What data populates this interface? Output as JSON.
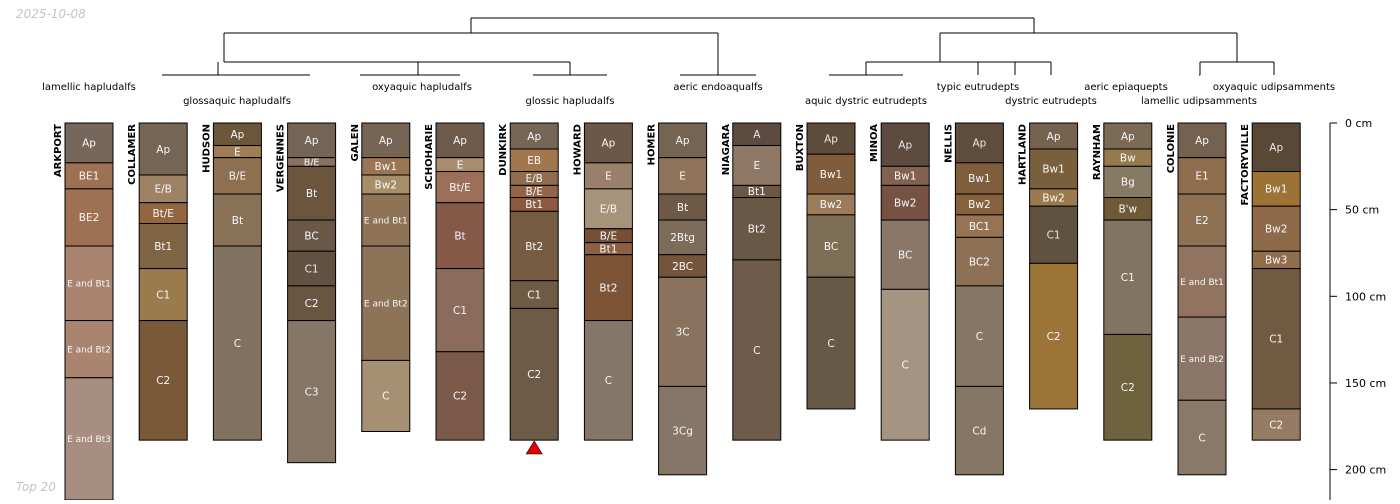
{
  "header": {
    "date": "2025-10-08"
  },
  "footer": {
    "label": "Top 20"
  },
  "chart_data": {
    "type": "soil-profile-sketch",
    "depth_unit": "cm",
    "depth_axis": {
      "ticks": [
        0,
        50,
        100,
        150,
        200
      ],
      "labels": [
        "0 cm",
        "50 cm",
        "100 cm",
        "150 cm",
        "200 cm"
      ]
    },
    "subgroup_labels": [
      {
        "text": "lamellic hapludalfs",
        "row": 1
      },
      {
        "text": "glossaquic hapludalfs",
        "row": 2
      },
      {
        "text": "oxyaquic hapludalfs",
        "row": 1
      },
      {
        "text": "glossic hapludalfs",
        "row": 2
      },
      {
        "text": "aeric endoaqualfs",
        "row": 1
      },
      {
        "text": "aquic dystric eutrudepts",
        "row": 2
      },
      {
        "text": "typic eutrudepts",
        "row": 1
      },
      {
        "text": "dystric eutrudepts",
        "row": 2
      },
      {
        "text": "aeric epiaquepts",
        "row": 1
      },
      {
        "text": "lamellic udipsamments",
        "row": 2
      },
      {
        "text": "oxyaquic udipsamments",
        "row": 1
      }
    ],
    "profiles": [
      {
        "name": "ARKPORT",
        "horizons": [
          {
            "name": "Ap",
            "top": 0,
            "bottom": 23,
            "color": "#77675a"
          },
          {
            "name": "BE1",
            "top": 23,
            "bottom": 38,
            "color": "#9e7054"
          },
          {
            "name": "BE2",
            "top": 38,
            "bottom": 71,
            "color": "#9e7054"
          },
          {
            "name": "E and Bt1",
            "top": 71,
            "bottom": 114,
            "color": "#a9846f"
          },
          {
            "name": "E and Bt2",
            "top": 114,
            "bottom": 147,
            "color": "#a9846f"
          },
          {
            "name": "E and Bt3",
            "top": 147,
            "bottom": 220,
            "color": "#a78e80"
          }
        ]
      },
      {
        "name": "COLLAMER",
        "horizons": [
          {
            "name": "Ap",
            "top": 0,
            "bottom": 30,
            "color": "#766656"
          },
          {
            "name": "E/B",
            "top": 30,
            "bottom": 46,
            "color": "#9d8264"
          },
          {
            "name": "Bt/E",
            "top": 46,
            "bottom": 58,
            "color": "#93663f"
          },
          {
            "name": "Bt1",
            "top": 58,
            "bottom": 84,
            "color": "#7f6446"
          },
          {
            "name": "C1",
            "top": 84,
            "bottom": 114,
            "color": "#9a7b4b"
          },
          {
            "name": "C2",
            "top": 114,
            "bottom": 183,
            "color": "#7a5938"
          }
        ]
      },
      {
        "name": "HUDSON",
        "horizons": [
          {
            "name": "Ap",
            "top": 0,
            "bottom": 13,
            "color": "#6c563b"
          },
          {
            "name": "E",
            "top": 13,
            "bottom": 20,
            "color": "#a07e55"
          },
          {
            "name": "B/E",
            "top": 20,
            "bottom": 41,
            "color": "#8c7050"
          },
          {
            "name": "Bt",
            "top": 41,
            "bottom": 71,
            "color": "#897258"
          },
          {
            "name": "C",
            "top": 71,
            "bottom": 183,
            "color": "#80725e"
          }
        ]
      },
      {
        "name": "VERGENNES",
        "horizons": [
          {
            "name": "Ap",
            "top": 0,
            "bottom": 20,
            "color": "#736455"
          },
          {
            "name": "B/E",
            "top": 20,
            "bottom": 25,
            "color": "#8a7160"
          },
          {
            "name": "Bt",
            "top": 25,
            "bottom": 56,
            "color": "#6b553f"
          },
          {
            "name": "BC",
            "top": 56,
            "bottom": 74,
            "color": "#6a5746"
          },
          {
            "name": "C1",
            "top": 74,
            "bottom": 94,
            "color": "#625040"
          },
          {
            "name": "C2",
            "top": 94,
            "bottom": 114,
            "color": "#6a5442"
          },
          {
            "name": "C3",
            "top": 114,
            "bottom": 196,
            "color": "#857665"
          }
        ]
      },
      {
        "name": "GALEN",
        "horizons": [
          {
            "name": "Ap",
            "top": 0,
            "bottom": 20,
            "color": "#766454"
          },
          {
            "name": "Bw1",
            "top": 20,
            "bottom": 30,
            "color": "#9b7554"
          },
          {
            "name": "Bw2",
            "top": 30,
            "bottom": 41,
            "color": "#a68f68"
          },
          {
            "name": "E and Bt1",
            "top": 41,
            "bottom": 71,
            "color": "#8e7357"
          },
          {
            "name": "E and Bt2",
            "top": 71,
            "bottom": 137,
            "color": "#8d7458"
          },
          {
            "name": "C",
            "top": 137,
            "bottom": 178,
            "color": "#a69074"
          }
        ]
      },
      {
        "name": "SCHOHARIE",
        "horizons": [
          {
            "name": "Ap",
            "top": 0,
            "bottom": 20,
            "color": "#6e5b4c"
          },
          {
            "name": "E",
            "top": 20,
            "bottom": 28,
            "color": "#a88c6c"
          },
          {
            "name": "Bt/E",
            "top": 28,
            "bottom": 46,
            "color": "#9b6f58"
          },
          {
            "name": "Bt",
            "top": 46,
            "bottom": 84,
            "color": "#845948"
          },
          {
            "name": "C1",
            "top": 84,
            "bottom": 132,
            "color": "#8b6b5c"
          },
          {
            "name": "C2",
            "top": 132,
            "bottom": 183,
            "color": "#7b5a4a"
          }
        ]
      },
      {
        "name": "DUNKIRK",
        "horizons": [
          {
            "name": "Ap",
            "top": 0,
            "bottom": 15,
            "color": "#766655"
          },
          {
            "name": "EB",
            "top": 15,
            "bottom": 28,
            "color": "#a2774e"
          },
          {
            "name": "E/B",
            "top": 28,
            "bottom": 36,
            "color": "#8e6c4e"
          },
          {
            "name": "B/E",
            "top": 36,
            "bottom": 43,
            "color": "#956447"
          },
          {
            "name": "Bt1",
            "top": 43,
            "bottom": 51,
            "color": "#8a5940"
          },
          {
            "name": "Bt2",
            "top": 51,
            "bottom": 91,
            "color": "#755c43"
          },
          {
            "name": "C1",
            "top": 91,
            "bottom": 107,
            "color": "#6f5a43"
          },
          {
            "name": "C2",
            "top": 107,
            "bottom": 183,
            "color": "#6e5b47"
          }
        ]
      },
      {
        "name": "HOWARD",
        "horizons": [
          {
            "name": "Ap",
            "top": 0,
            "bottom": 23,
            "color": "#6b5848"
          },
          {
            "name": "E",
            "top": 23,
            "bottom": 38,
            "color": "#98806a"
          },
          {
            "name": "E/B",
            "top": 38,
            "bottom": 61,
            "color": "#a6937c"
          },
          {
            "name": "B/E",
            "top": 61,
            "bottom": 69,
            "color": "#754e35"
          },
          {
            "name": "Bt1",
            "top": 69,
            "bottom": 76,
            "color": "#8b6043"
          },
          {
            "name": "Bt2",
            "top": 76,
            "bottom": 114,
            "color": "#7d5536"
          },
          {
            "name": "C",
            "top": 114,
            "bottom": 183,
            "color": "#857768"
          }
        ]
      },
      {
        "name": "HOMER",
        "horizons": [
          {
            "name": "Ap",
            "top": 0,
            "bottom": 20,
            "color": "#766453"
          },
          {
            "name": "E",
            "top": 20,
            "bottom": 41,
            "color": "#8f735b"
          },
          {
            "name": "Bt",
            "top": 41,
            "bottom": 56,
            "color": "#6e5946"
          },
          {
            "name": "2Btg",
            "top": 56,
            "bottom": 76,
            "color": "#7e6c5a"
          },
          {
            "name": "2BC",
            "top": 76,
            "bottom": 89,
            "color": "#74553c"
          },
          {
            "name": "3C",
            "top": 89,
            "bottom": 152,
            "color": "#8a735e"
          },
          {
            "name": "3Cg",
            "top": 152,
            "bottom": 203,
            "color": "#857667"
          }
        ]
      },
      {
        "name": "NIAGARA",
        "horizons": [
          {
            "name": "A",
            "top": 0,
            "bottom": 13,
            "color": "#5c4b3e"
          },
          {
            "name": "E",
            "top": 13,
            "bottom": 36,
            "color": "#8f7966"
          },
          {
            "name": "Bt1",
            "top": 36,
            "bottom": 43,
            "color": "#6c5746"
          },
          {
            "name": "Bt2",
            "top": 43,
            "bottom": 79,
            "color": "#6a5846"
          },
          {
            "name": "C",
            "top": 79,
            "bottom": 183,
            "color": "#6e5b4a"
          }
        ]
      },
      {
        "name": "BUXTON",
        "horizons": [
          {
            "name": "Ap",
            "top": 0,
            "bottom": 18,
            "color": "#5e4c3a"
          },
          {
            "name": "Bw1",
            "top": 18,
            "bottom": 41,
            "color": "#7f5c3b"
          },
          {
            "name": "Bw2",
            "top": 41,
            "bottom": 53,
            "color": "#9a7c5a"
          },
          {
            "name": "BC",
            "top": 53,
            "bottom": 89,
            "color": "#7e6e55"
          },
          {
            "name": "C",
            "top": 89,
            "bottom": 165,
            "color": "#655a45"
          }
        ]
      },
      {
        "name": "MINOA",
        "horizons": [
          {
            "name": "Ap",
            "top": 0,
            "bottom": 25,
            "color": "#5c4b3e"
          },
          {
            "name": "Bw1",
            "top": 25,
            "bottom": 36,
            "color": "#826150"
          },
          {
            "name": "Bw2",
            "top": 36,
            "bottom": 56,
            "color": "#755244"
          },
          {
            "name": "BC",
            "top": 56,
            "bottom": 96,
            "color": "#8b7767"
          },
          {
            "name": "C",
            "top": 96,
            "bottom": 183,
            "color": "#a69482"
          }
        ]
      },
      {
        "name": "NELLIS",
        "horizons": [
          {
            "name": "Ap",
            "top": 0,
            "bottom": 23,
            "color": "#5e4c3c"
          },
          {
            "name": "Bw1",
            "top": 23,
            "bottom": 41,
            "color": "#7f5e3e"
          },
          {
            "name": "Bw2",
            "top": 41,
            "bottom": 53,
            "color": "#86623f"
          },
          {
            "name": "BC1",
            "top": 53,
            "bottom": 66,
            "color": "#957353"
          },
          {
            "name": "BC2",
            "top": 66,
            "bottom": 94,
            "color": "#8d7157"
          },
          {
            "name": "C",
            "top": 94,
            "bottom": 152,
            "color": "#857763"
          },
          {
            "name": "Cd",
            "top": 152,
            "bottom": 203,
            "color": "#857764"
          }
        ]
      },
      {
        "name": "HARTLAND",
        "horizons": [
          {
            "name": "Ap",
            "top": 0,
            "bottom": 15,
            "color": "#76634f"
          },
          {
            "name": "Bw1",
            "top": 15,
            "bottom": 38,
            "color": "#7a5f3d"
          },
          {
            "name": "Bw2",
            "top": 38,
            "bottom": 48,
            "color": "#9a7a4e"
          },
          {
            "name": "C1",
            "top": 48,
            "bottom": 81,
            "color": "#5f523e"
          },
          {
            "name": "C2",
            "top": 81,
            "bottom": 165,
            "color": "#9c7437"
          }
        ]
      },
      {
        "name": "RAYNHAM",
        "horizons": [
          {
            "name": "Ap",
            "top": 0,
            "bottom": 15,
            "color": "#7b6b56"
          },
          {
            "name": "Bw",
            "top": 15,
            "bottom": 25,
            "color": "#957a4d"
          },
          {
            "name": "Bg",
            "top": 25,
            "bottom": 43,
            "color": "#867a64"
          },
          {
            "name": "B'w",
            "top": 43,
            "bottom": 56,
            "color": "#6e5a37"
          },
          {
            "name": "C1",
            "top": 56,
            "bottom": 122,
            "color": "#817561"
          },
          {
            "name": "C2",
            "top": 122,
            "bottom": 183,
            "color": "#6f623e"
          }
        ]
      },
      {
        "name": "COLONIE",
        "horizons": [
          {
            "name": "Ap",
            "top": 0,
            "bottom": 20,
            "color": "#746150"
          },
          {
            "name": "E1",
            "top": 20,
            "bottom": 41,
            "color": "#8f6c4c"
          },
          {
            "name": "E2",
            "top": 41,
            "bottom": 71,
            "color": "#8e7153"
          },
          {
            "name": "E and Bt1",
            "top": 71,
            "bottom": 112,
            "color": "#907460"
          },
          {
            "name": "E and Bt2",
            "top": 112,
            "bottom": 160,
            "color": "#8b7668"
          },
          {
            "name": "C",
            "top": 160,
            "bottom": 203,
            "color": "#8a7868"
          }
        ]
      },
      {
        "name": "FACTORYVILLE",
        "horizons": [
          {
            "name": "Ap",
            "top": 0,
            "bottom": 28,
            "color": "#594836"
          },
          {
            "name": "Bw1",
            "top": 28,
            "bottom": 48,
            "color": "#9d7236"
          },
          {
            "name": "Bw2",
            "top": 48,
            "bottom": 74,
            "color": "#8d6b4a"
          },
          {
            "name": "Bw3",
            "top": 74,
            "bottom": 84,
            "color": "#906d4b"
          },
          {
            "name": "C1",
            "top": 84,
            "bottom": 165,
            "color": "#705a42"
          },
          {
            "name": "C2",
            "top": 165,
            "bottom": 183,
            "color": "#957b64"
          }
        ]
      }
    ],
    "marker": {
      "profile": "DUNKIRK",
      "shape": "triangle",
      "color": "#e60000"
    },
    "dendrogram": {
      "branch_color": "#000000"
    }
  }
}
